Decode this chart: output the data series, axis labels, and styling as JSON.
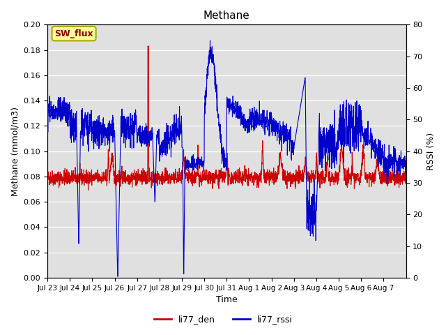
{
  "title": "Methane",
  "ylabel_left": "Methane (mmol/m3)",
  "ylabel_right": "RSSI (%)",
  "xlabel": "Time",
  "ylim_left": [
    0.0,
    0.2
  ],
  "ylim_right": [
    0,
    80
  ],
  "yticks_left": [
    0.0,
    0.02,
    0.04,
    0.06,
    0.08,
    0.1,
    0.12,
    0.14,
    0.16,
    0.18,
    0.2
  ],
  "yticks_right": [
    0,
    10,
    20,
    30,
    40,
    50,
    60,
    70,
    80
  ],
  "xtick_labels": [
    "Jul 23",
    "Jul 24",
    "Jul 25",
    "Jul 26",
    "Jul 27",
    "Jul 28",
    "Jul 29",
    "Jul 30",
    "Jul 31",
    "Aug 1",
    "Aug 2",
    "Aug 3",
    "Aug 4",
    "Aug 5",
    "Aug 6",
    "Aug 7"
  ],
  "color_red": "#cc0000",
  "color_blue": "#0000cc",
  "bg_color": "#e0e0e0",
  "legend_labels": [
    "li77_den",
    "li77_rssi"
  ],
  "annotation_text": "SW_flux",
  "annotation_bg": "#ffff99",
  "annotation_border": "#aaaa00"
}
